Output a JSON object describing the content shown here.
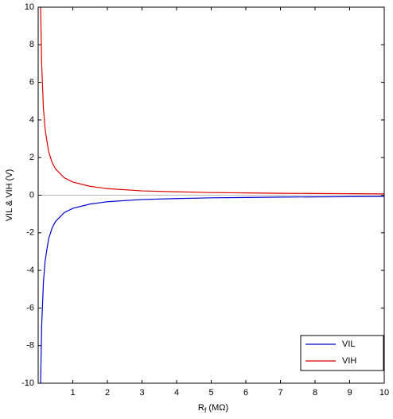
{
  "chart_data": {
    "type": "line",
    "xlabel": {
      "text": "R",
      "subscript": "f",
      "suffix": " (MΩ)"
    },
    "ylabel": "VIL & VIH (V)",
    "x": [
      0.07,
      0.1,
      0.15,
      0.2,
      0.3,
      0.4,
      0.5,
      0.75,
      1,
      1.5,
      2,
      3,
      4,
      5,
      6,
      7,
      8,
      9,
      10
    ],
    "series": [
      {
        "name": "VIL",
        "color": "#0000cc",
        "values": [
          -10,
          -7,
          -4.67,
          -3.5,
          -2.33,
          -1.75,
          -1.4,
          -0.93,
          -0.7,
          -0.47,
          -0.35,
          -0.23,
          -0.18,
          -0.14,
          -0.12,
          -0.1,
          -0.09,
          -0.08,
          -0.07
        ]
      },
      {
        "name": "VIH",
        "color": "#dd0000",
        "values": [
          10,
          7,
          4.67,
          3.5,
          2.33,
          1.75,
          1.4,
          0.93,
          0.7,
          0.47,
          0.35,
          0.23,
          0.18,
          0.14,
          0.12,
          0.1,
          0.09,
          0.08,
          0.07
        ]
      }
    ],
    "xlim": [
      0,
      10
    ],
    "xticks": [
      1,
      2,
      3,
      4,
      5,
      6,
      7,
      8,
      9,
      10
    ],
    "ylim": [
      -10,
      10
    ],
    "yticks": [
      -10,
      -8,
      -6,
      -4,
      -2,
      0,
      2,
      4,
      6,
      8,
      10
    ],
    "hlines": [
      0
    ],
    "legend": "lower right"
  }
}
